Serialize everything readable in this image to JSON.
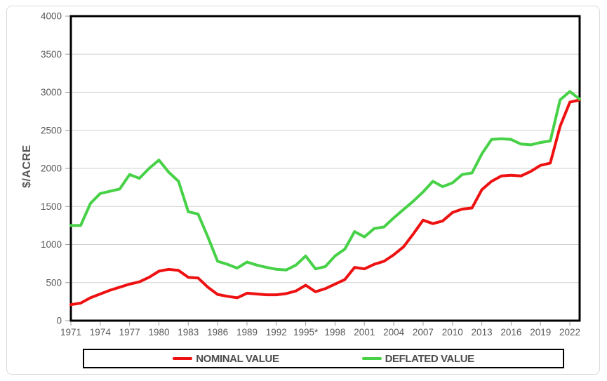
{
  "chart_data": {
    "type": "line",
    "title": "",
    "xlabel": "",
    "ylabel": "$/ACRE",
    "x": [
      1971,
      1972,
      1973,
      1974,
      1975,
      1976,
      1977,
      1978,
      1979,
      1980,
      1981,
      1982,
      1983,
      1984,
      1985,
      1986,
      1987,
      1988,
      1989,
      1990,
      1991,
      1992,
      1993,
      1994,
      1995,
      1996,
      1997,
      1998,
      1999,
      2000,
      2001,
      2002,
      2003,
      2004,
      2005,
      2006,
      2007,
      2008,
      2009,
      2010,
      2011,
      2012,
      2013,
      2014,
      2015,
      2016,
      2017,
      2018,
      2019,
      2020,
      2021,
      2022,
      2023
    ],
    "series": [
      {
        "name": "NOMINAL VALUE",
        "color": "#ee1111",
        "values": [
          210,
          230,
          300,
          350,
          400,
          440,
          480,
          510,
          570,
          650,
          675,
          660,
          570,
          560,
          440,
          345,
          320,
          300,
          360,
          350,
          340,
          340,
          355,
          390,
          465,
          380,
          420,
          480,
          540,
          700,
          680,
          740,
          780,
          865,
          970,
          1140,
          1320,
          1275,
          1310,
          1420,
          1465,
          1480,
          1720,
          1830,
          1900,
          1910,
          1900,
          1960,
          2040,
          2070,
          2550,
          2870,
          2900
        ]
      },
      {
        "name": "DEFLATED VALUE",
        "color": "#47d147",
        "values": [
          1250,
          1250,
          1540,
          1670,
          1700,
          1730,
          1920,
          1870,
          2000,
          2110,
          1950,
          1830,
          1430,
          1400,
          1100,
          780,
          740,
          690,
          770,
          730,
          700,
          675,
          665,
          730,
          850,
          680,
          710,
          850,
          940,
          1170,
          1100,
          1210,
          1230,
          1350,
          1460,
          1570,
          1690,
          1830,
          1760,
          1810,
          1920,
          1940,
          2190,
          2380,
          2390,
          2380,
          2320,
          2310,
          2340,
          2360,
          2900,
          3010,
          2910
        ]
      }
    ],
    "ylim": [
      0,
      4000
    ],
    "yticks": [
      0,
      500,
      1000,
      1500,
      2000,
      2500,
      3000,
      3500,
      4000
    ],
    "xtick_labels": [
      "1971",
      "1974",
      "1977",
      "1980",
      "1983",
      "1986",
      "1989",
      "1992",
      "1995*",
      "1998",
      "2001",
      "2004",
      "2007",
      "2010",
      "2013",
      "2016",
      "2019",
      "2022"
    ],
    "xtick_step_years": 3,
    "grid": "horizontal",
    "legend_position": "bottom"
  },
  "colors": {
    "gridline": "#d0d0d0",
    "axis_border": "#000000",
    "tick": "#9b9b9b",
    "tick_text": "#595959",
    "legend_text": "#4d4d4d",
    "canvas_border": "#d9d9d9"
  }
}
